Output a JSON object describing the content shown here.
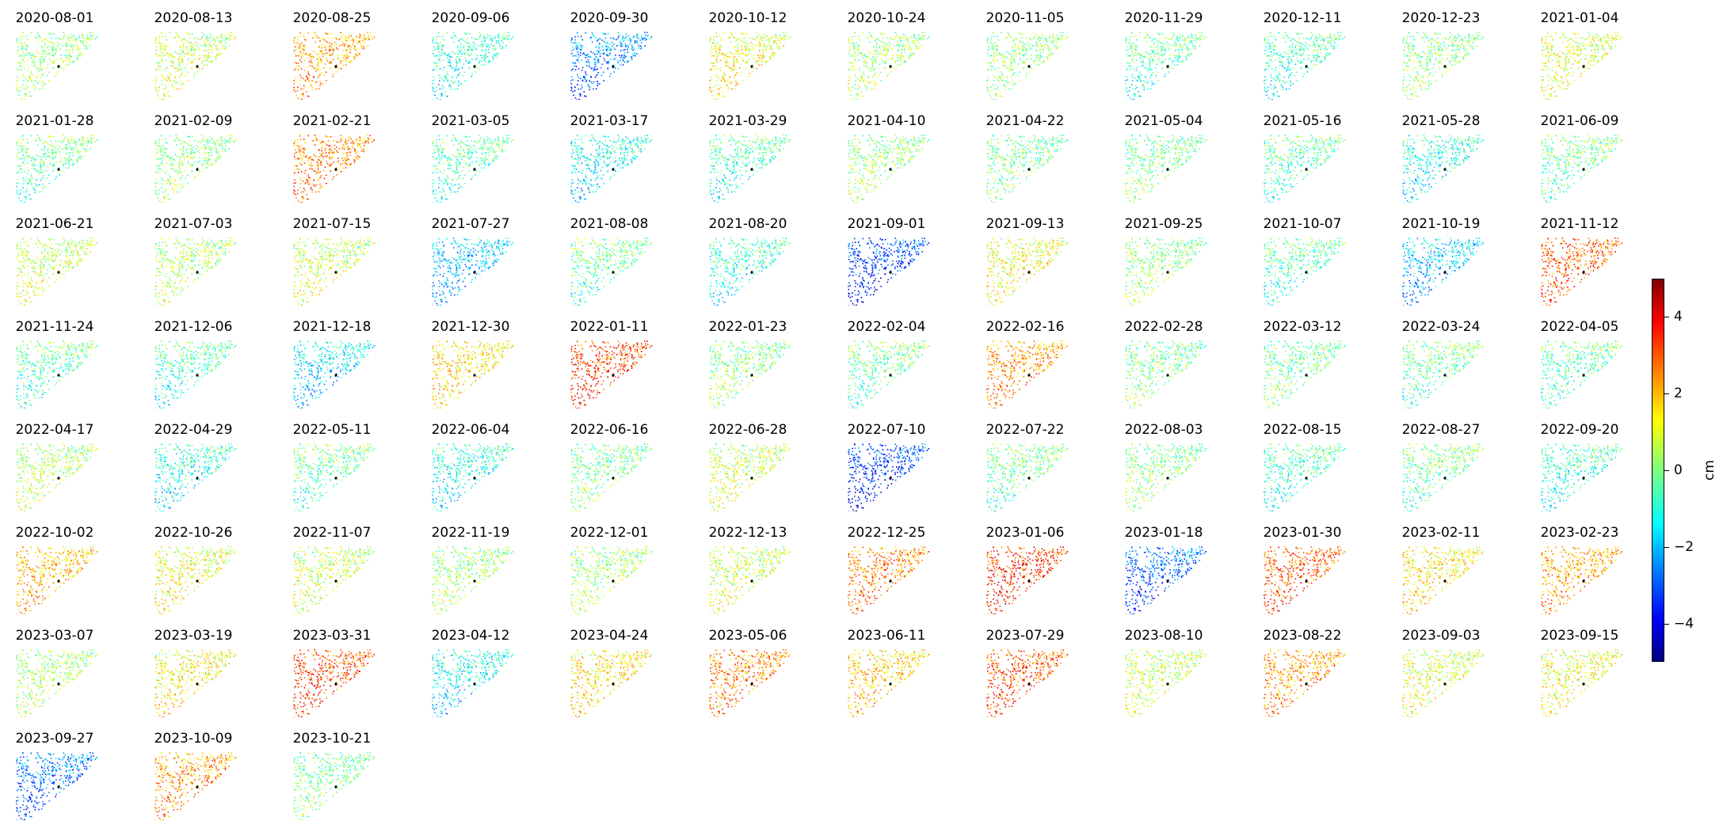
{
  "chart_data": {
    "type": "heatmap",
    "description_free": true,
    "panel_titles": [
      "2020-08-01",
      "2020-08-13",
      "2020-08-25",
      "2020-09-06",
      "2020-09-30",
      "2020-10-12",
      "2020-10-24",
      "2020-11-05",
      "2020-11-29",
      "2020-12-11",
      "2020-12-23",
      "2021-01-04",
      "2021-01-28",
      "2021-02-09",
      "2021-02-21",
      "2021-03-05",
      "2021-03-17",
      "2021-03-29",
      "2021-04-10",
      "2021-04-22",
      "2021-05-04",
      "2021-05-16",
      "2021-05-28",
      "2021-06-09",
      "2021-06-21",
      "2021-07-03",
      "2021-07-15",
      "2021-07-27",
      "2021-08-08",
      "2021-08-20",
      "2021-09-01",
      "2021-09-13",
      "2021-09-25",
      "2021-10-07",
      "2021-10-19",
      "2021-11-12",
      "2021-11-24",
      "2021-12-06",
      "2021-12-18",
      "2021-12-30",
      "2022-01-11",
      "2022-01-23",
      "2022-02-04",
      "2022-02-16",
      "2022-02-28",
      "2022-03-12",
      "2022-03-24",
      "2022-04-05",
      "2022-04-17",
      "2022-04-29",
      "2022-05-11",
      "2022-06-04",
      "2022-06-16",
      "2022-06-28",
      "2022-07-10",
      "2022-07-22",
      "2022-08-03",
      "2022-08-15",
      "2022-08-27",
      "2022-09-20",
      "2022-10-02",
      "2022-10-26",
      "2022-11-07",
      "2022-11-19",
      "2022-12-01",
      "2022-12-13",
      "2022-12-25",
      "2023-01-06",
      "2023-01-18",
      "2023-01-30",
      "2023-02-11",
      "2023-02-23",
      "2023-03-07",
      "2023-03-19",
      "2023-03-31",
      "2023-04-12",
      "2023-04-24",
      "2023-05-06",
      "2023-06-11",
      "2023-07-29",
      "2023-08-10",
      "2023-08-22",
      "2023-09-03",
      "2023-09-15",
      "2023-09-27",
      "2023-10-09",
      "2023-10-21"
    ],
    "panel_means_cm": [
      0.3,
      0.8,
      2.2,
      -1.0,
      -2.6,
      1.2,
      0.4,
      0.2,
      -0.6,
      -0.8,
      0.2,
      1.0,
      -0.4,
      0.2,
      2.6,
      -0.6,
      -1.4,
      -0.8,
      0.3,
      0.0,
      0.0,
      -0.6,
      -1.2,
      -0.4,
      0.8,
      0.6,
      0.8,
      -2.0,
      -0.4,
      -1.0,
      -3.4,
      1.2,
      0.2,
      -0.6,
      -2.0,
      3.0,
      -0.6,
      -0.8,
      -1.6,
      1.6,
      3.2,
      0.2,
      -0.4,
      2.4,
      0.0,
      0.0,
      -0.4,
      -0.6,
      0.6,
      -1.2,
      -0.4,
      -1.2,
      0.0,
      0.8,
      -3.4,
      -0.4,
      0.2,
      -0.8,
      -0.4,
      -1.0,
      2.0,
      1.2,
      0.8,
      0.4,
      0.4,
      0.8,
      2.6,
      3.4,
      -3.0,
      3.0,
      1.6,
      2.2,
      0.4,
      1.4,
      3.2,
      -1.4,
      1.6,
      2.6,
      1.8,
      3.0,
      0.8,
      2.4,
      1.0,
      1.2,
      -2.8,
      2.4,
      0.0
    ],
    "colorbar": {
      "label": "cm",
      "ticks": [
        4,
        2,
        0,
        -2,
        -4
      ],
      "tick_labels": [
        "4",
        "2",
        "0",
        "−2",
        "−4"
      ],
      "range": [
        -5,
        5
      ],
      "colormap": "jet"
    }
  }
}
